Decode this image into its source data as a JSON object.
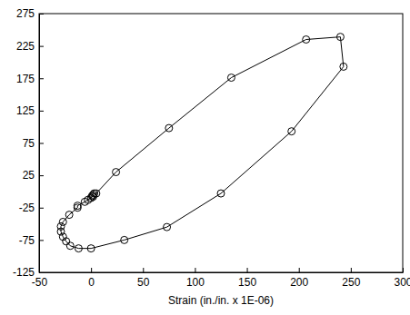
{
  "chart_data": {
    "type": "line",
    "x_label": "Strain (in./in. x 1E-06)",
    "x": [
      2,
      5,
      24,
      75,
      135,
      207,
      240,
      243,
      193,
      125,
      73,
      32,
      0,
      -12,
      -20,
      -24,
      -27,
      -29,
      -29,
      -27,
      -21,
      -13,
      -13,
      -6,
      -3,
      0,
      1,
      2,
      3
    ],
    "values": [
      -8,
      -3,
      30,
      98,
      176,
      235,
      239,
      193,
      93,
      -3,
      -55,
      -75,
      -88,
      -88,
      -84,
      -77,
      -70,
      -62,
      -54,
      -47,
      -36,
      -25,
      -22,
      -16,
      -13,
      -10,
      -7,
      -5,
      -3
    ],
    "xlim": [
      -50,
      300
    ],
    "ylim": [
      -125,
      275
    ],
    "xticks": [
      -50,
      0,
      50,
      100,
      150,
      200,
      250,
      300
    ],
    "yticks": [
      -125,
      -75,
      -25,
      25,
      75,
      125,
      175,
      225,
      275
    ],
    "marker": "circle",
    "line_style": "solid",
    "color": "#000000"
  }
}
